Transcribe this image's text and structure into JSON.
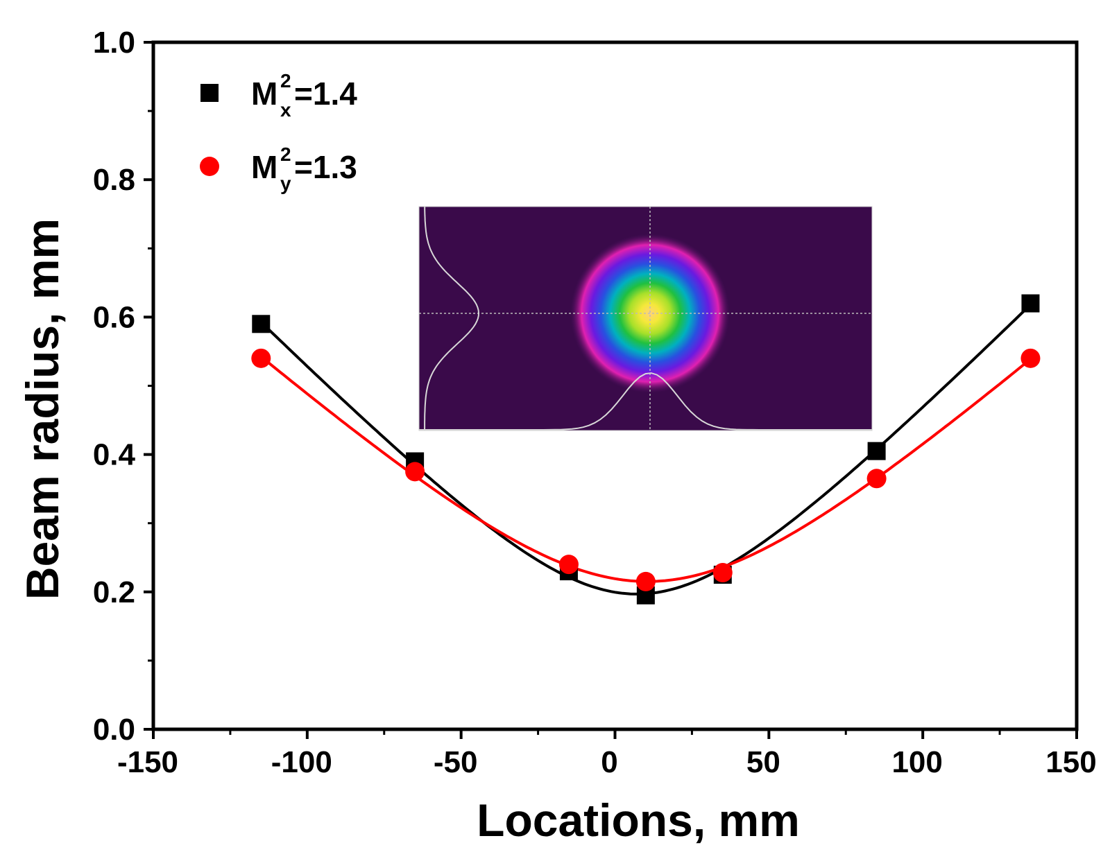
{
  "chart_data": {
    "type": "scatter",
    "title": "",
    "xlabel": "Locations, mm",
    "ylabel": "Beam radius, mm",
    "xlim": [
      -150,
      150
    ],
    "ylim": [
      0.0,
      1.0
    ],
    "x_ticks": [
      -150,
      -100,
      -50,
      0,
      50,
      100,
      150
    ],
    "x_tick_labels": [
      "-150",
      "-100",
      "-50",
      "0",
      "50",
      "100",
      "150"
    ],
    "y_ticks": [
      0.0,
      0.2,
      0.4,
      0.6,
      0.8,
      1.0
    ],
    "y_tick_labels": [
      "0.0",
      "0.2",
      "0.4",
      "0.6",
      "0.8",
      "1.0"
    ],
    "grid": false,
    "legend_position": "top-left",
    "series": [
      {
        "name": "M_x^2=1.4",
        "legend": {
          "base": "M",
          "sup": "2",
          "sub": "x",
          "rest": "=1.4"
        },
        "marker": "square",
        "color": "#000000",
        "fit": "hyperbolic",
        "x": [
          -115,
          -65,
          -15,
          10,
          35,
          85,
          135
        ],
        "y": [
          0.59,
          0.39,
          0.23,
          0.195,
          0.225,
          0.405,
          0.62
        ]
      },
      {
        "name": "M_y^2=1.3",
        "legend": {
          "base": "M",
          "sup": "2",
          "sub": "y",
          "rest": "=1.3"
        },
        "marker": "circle",
        "color": "#ff0000",
        "fit": "hyperbolic",
        "x": [
          -115,
          -65,
          -15,
          10,
          35,
          85,
          135
        ],
        "y": [
          0.54,
          0.375,
          0.24,
          0.215,
          0.228,
          0.365,
          0.54
        ]
      }
    ],
    "inset": {
      "description": "beam profile",
      "background": "#3a0a4a"
    }
  }
}
